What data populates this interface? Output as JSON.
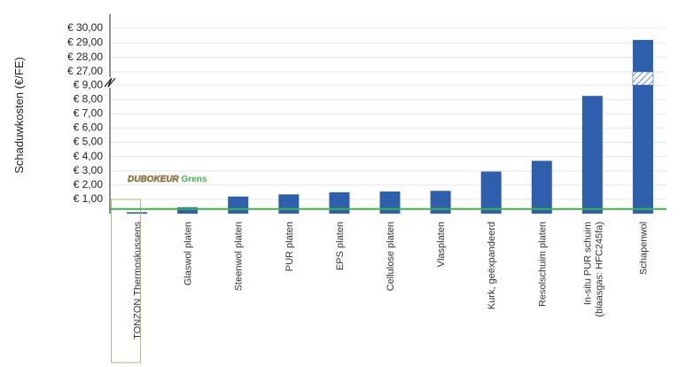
{
  "chart_data": {
    "type": "bar",
    "ylabel": "Schaduwkosten (€/FE)",
    "yticks_lower": [
      "€ 1,00",
      "€ 2,00",
      "€ 3,00",
      "€ 4,00",
      "€ 5,00",
      "€ 6,00",
      "€ 7,00",
      "€ 8,00",
      "€ 9,00"
    ],
    "yticks_upper": [
      "€ 27,00",
      "€ 28,00",
      "€ 29,00",
      "€ 30,00"
    ],
    "axis_break": {
      "from": 9.3,
      "to": 26.7
    },
    "categories": [
      "TONZON Thermoskussens",
      "Glaswol platen",
      "Steenwol platen",
      "PUR platen",
      "EPS platen",
      "Cellulose platen",
      "Vlasplaten",
      "Kurk, geëxpandeerd",
      "Resolschuim platen",
      "In-situ PUR schuim (blaasgas: HFC245fa)",
      "Schapenwol"
    ],
    "values": [
      0.1,
      0.45,
      1.2,
      1.35,
      1.5,
      1.55,
      1.6,
      2.95,
      3.7,
      8.25,
      29.2
    ],
    "highlighted_category": "TONZON Thermoskussens",
    "reference_line": {
      "value": 0.2,
      "label_brand": "DUBOKEUR",
      "label_text": " Grens",
      "color": "#3cb44b"
    },
    "bar_color": "#2e5fac",
    "grid": true,
    "ylim": [
      0,
      30
    ]
  }
}
